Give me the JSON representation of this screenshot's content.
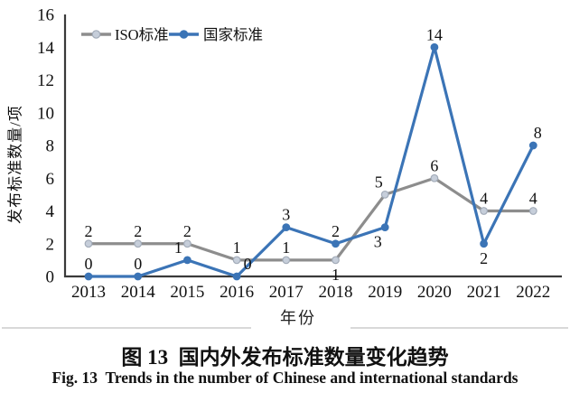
{
  "figure": {
    "y_axis_title": "发布标准数量/项",
    "x_axis_title": "年份",
    "caption_zh": "图 13  国内外发布标准数量变化趋势",
    "caption_en": "Fig. 13  Trends in the number of Chinese and international standards"
  },
  "chart_data": {
    "type": "line",
    "title": "",
    "xlabel": "年份",
    "ylabel": "发布标准数量/项",
    "categories": [
      "2013",
      "2014",
      "2015",
      "2016",
      "2017",
      "2018",
      "2019",
      "2020",
      "2021",
      "2022"
    ],
    "ylim": [
      0,
      16
    ],
    "y_tick_step": 2,
    "grid": false,
    "legend_position": "top-left-inside",
    "axis_color": "#3a3a3a",
    "text_color": "#111111",
    "series": [
      {
        "name": "ISO标准",
        "color": "#8d8d8d",
        "marker_fill": "#c6ceda",
        "marker_stroke": "#a2abb8",
        "values": [
          2,
          2,
          2,
          1,
          1,
          1,
          5,
          6,
          4,
          4
        ],
        "label_pos": [
          "above",
          "above",
          "above",
          "above",
          "above",
          "below",
          "above",
          "above",
          "above",
          "above"
        ],
        "label_dx": [
          0,
          0,
          0,
          0,
          0,
          0,
          -7,
          0,
          0,
          0
        ]
      },
      {
        "name": "国家标准",
        "color": "#3b74b6",
        "marker_fill": "#3b74b6",
        "marker_stroke": "#3b74b6",
        "values": [
          0,
          0,
          1,
          0,
          3,
          2,
          3,
          14,
          2,
          8
        ],
        "label_pos": [
          "above",
          "above",
          "above",
          "above",
          "above",
          "above",
          "below",
          "above",
          "below",
          "above"
        ],
        "label_dx": [
          0,
          0,
          -10,
          12,
          0,
          0,
          -8,
          0,
          0,
          5
        ]
      }
    ]
  }
}
